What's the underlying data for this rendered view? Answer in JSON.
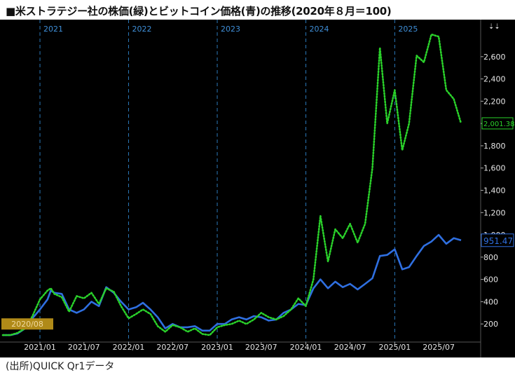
{
  "title": "■米ストラテジー社の株価(緑)とビットコイン価格(青)の推移(2020年８月＝100)",
  "source": "(出所)QUICK Qr1データ",
  "colors": {
    "background": "#000000",
    "strategy": "#2ad12a",
    "bitcoin": "#2f6fe0",
    "year_line": "#2b78b8",
    "axis_text": "#e6e6e6",
    "year_text": "#3f8fd8",
    "start_label_bg": "#b08a18"
  },
  "chart_data": {
    "type": "line",
    "title": "■米ストラテジー社の株価(緑)とビットコイン価格(青)の推移(2020年８月＝100)",
    "ylim": [
      50,
      2920
    ],
    "y_ticks": [
      200,
      400,
      600,
      800,
      1000,
      1200,
      1400,
      1600,
      1800,
      2000,
      2200,
      2400,
      2600
    ],
    "y_tick_labels": [
      "200",
      "400",
      "600",
      "800",
      "1,000",
      "1,200",
      "1,400",
      "1,600",
      "1,800",
      "2,000",
      "2,200",
      "2,400",
      "2,600"
    ],
    "xlim": [
      "2020-08-01",
      "2025-12-15"
    ],
    "x_ticks": [
      "2021-01",
      "2021-07",
      "2022-01",
      "2022-07",
      "2023-01",
      "2023-07",
      "2024-01",
      "2024-07",
      "2025-01",
      "2025-07"
    ],
    "x_tick_labels": [
      "2021/01",
      "2021/07",
      "2022/01",
      "2022/07",
      "2023/01",
      "2023/07",
      "2024/01",
      "2024/07",
      "2025/01",
      "2025/07"
    ],
    "year_markers": [
      "2021-01",
      "2022-01",
      "2023-01",
      "2024-01",
      "2025-01"
    ],
    "year_labels": [
      "2021",
      "2022",
      "2023",
      "2024",
      "2025"
    ],
    "start_label": "2020/08",
    "last_value_labels": [
      "2,001.38",
      "951.47"
    ],
    "series": [
      {
        "key": "strategy",
        "style": "dotted",
        "points": [
          [
            "2020-08-01",
            100
          ],
          [
            "2020-09-01",
            100
          ],
          [
            "2020-10-01",
            120
          ],
          [
            "2020-11-01",
            160
          ],
          [
            "2020-12-01",
            270
          ],
          [
            "2021-01-01",
            420
          ],
          [
            "2021-02-01",
            500
          ],
          [
            "2021-02-15",
            520
          ],
          [
            "2021-03-01",
            470
          ],
          [
            "2021-04-01",
            440
          ],
          [
            "2021-05-01",
            310
          ],
          [
            "2021-06-01",
            450
          ],
          [
            "2021-07-01",
            430
          ],
          [
            "2021-08-01",
            480
          ],
          [
            "2021-09-01",
            380
          ],
          [
            "2021-10-01",
            520
          ],
          [
            "2021-11-01",
            490
          ],
          [
            "2021-12-01",
            360
          ],
          [
            "2022-01-01",
            250
          ],
          [
            "2022-02-01",
            290
          ],
          [
            "2022-03-01",
            330
          ],
          [
            "2022-04-01",
            290
          ],
          [
            "2022-05-01",
            180
          ],
          [
            "2022-06-01",
            130
          ],
          [
            "2022-07-01",
            190
          ],
          [
            "2022-08-01",
            170
          ],
          [
            "2022-09-01",
            130
          ],
          [
            "2022-10-01",
            160
          ],
          [
            "2022-11-01",
            110
          ],
          [
            "2022-12-01",
            100
          ],
          [
            "2023-01-01",
            170
          ],
          [
            "2023-02-01",
            190
          ],
          [
            "2023-03-01",
            200
          ],
          [
            "2023-04-01",
            230
          ],
          [
            "2023-05-01",
            200
          ],
          [
            "2023-06-01",
            240
          ],
          [
            "2023-07-01",
            300
          ],
          [
            "2023-08-01",
            260
          ],
          [
            "2023-09-01",
            240
          ],
          [
            "2023-10-01",
            270
          ],
          [
            "2023-11-01",
            330
          ],
          [
            "2023-12-01",
            430
          ],
          [
            "2024-01-01",
            360
          ],
          [
            "2024-02-01",
            600
          ],
          [
            "2024-03-01",
            1170
          ],
          [
            "2024-04-01",
            760
          ],
          [
            "2024-05-01",
            1050
          ],
          [
            "2024-06-01",
            970
          ],
          [
            "2024-07-01",
            1100
          ],
          [
            "2024-08-01",
            930
          ],
          [
            "2024-09-01",
            1100
          ],
          [
            "2024-10-01",
            1600
          ],
          [
            "2024-11-01",
            2680
          ],
          [
            "2024-12-01",
            2000
          ],
          [
            "2025-01-01",
            2300
          ],
          [
            "2025-02-01",
            1760
          ],
          [
            "2025-03-01",
            2000
          ],
          [
            "2025-04-01",
            2610
          ],
          [
            "2025-05-01",
            2550
          ],
          [
            "2025-06-01",
            2800
          ],
          [
            "2025-07-01",
            2780
          ],
          [
            "2025-08-01",
            2300
          ],
          [
            "2025-09-01",
            2220
          ],
          [
            "2025-10-01",
            2001.38
          ]
        ]
      },
      {
        "key": "bitcoin",
        "style": "solid",
        "points": [
          [
            "2020-08-01",
            100
          ],
          [
            "2020-09-01",
            100
          ],
          [
            "2020-10-01",
            115
          ],
          [
            "2020-11-01",
            160
          ],
          [
            "2020-12-01",
            250
          ],
          [
            "2021-01-01",
            330
          ],
          [
            "2021-02-01",
            420
          ],
          [
            "2021-02-15",
            500
          ],
          [
            "2021-03-01",
            480
          ],
          [
            "2021-04-01",
            470
          ],
          [
            "2021-05-01",
            330
          ],
          [
            "2021-06-01",
            300
          ],
          [
            "2021-07-01",
            330
          ],
          [
            "2021-08-01",
            400
          ],
          [
            "2021-09-01",
            360
          ],
          [
            "2021-10-01",
            530
          ],
          [
            "2021-11-01",
            480
          ],
          [
            "2021-12-01",
            400
          ],
          [
            "2022-01-01",
            330
          ],
          [
            "2022-02-01",
            350
          ],
          [
            "2022-03-01",
            390
          ],
          [
            "2022-04-01",
            330
          ],
          [
            "2022-05-01",
            260
          ],
          [
            "2022-06-01",
            160
          ],
          [
            "2022-07-01",
            200
          ],
          [
            "2022-08-01",
            170
          ],
          [
            "2022-09-01",
            170
          ],
          [
            "2022-10-01",
            180
          ],
          [
            "2022-11-01",
            140
          ],
          [
            "2022-12-01",
            140
          ],
          [
            "2023-01-01",
            200
          ],
          [
            "2023-02-01",
            200
          ],
          [
            "2023-03-01",
            240
          ],
          [
            "2023-04-01",
            260
          ],
          [
            "2023-05-01",
            240
          ],
          [
            "2023-06-01",
            270
          ],
          [
            "2023-07-01",
            260
          ],
          [
            "2023-08-01",
            230
          ],
          [
            "2023-09-01",
            240
          ],
          [
            "2023-10-01",
            300
          ],
          [
            "2023-11-01",
            330
          ],
          [
            "2023-12-01",
            380
          ],
          [
            "2024-01-01",
            370
          ],
          [
            "2024-02-01",
            520
          ],
          [
            "2024-03-01",
            600
          ],
          [
            "2024-04-01",
            520
          ],
          [
            "2024-05-01",
            580
          ],
          [
            "2024-06-01",
            530
          ],
          [
            "2024-07-01",
            560
          ],
          [
            "2024-08-01",
            510
          ],
          [
            "2024-09-01",
            560
          ],
          [
            "2024-10-01",
            610
          ],
          [
            "2024-11-01",
            810
          ],
          [
            "2024-12-01",
            820
          ],
          [
            "2025-01-01",
            870
          ],
          [
            "2025-02-01",
            690
          ],
          [
            "2025-03-01",
            710
          ],
          [
            "2025-04-01",
            810
          ],
          [
            "2025-05-01",
            900
          ],
          [
            "2025-06-01",
            940
          ],
          [
            "2025-07-01",
            1000
          ],
          [
            "2025-08-01",
            920
          ],
          [
            "2025-09-01",
            970
          ],
          [
            "2025-10-01",
            951.47
          ]
        ]
      }
    ]
  }
}
